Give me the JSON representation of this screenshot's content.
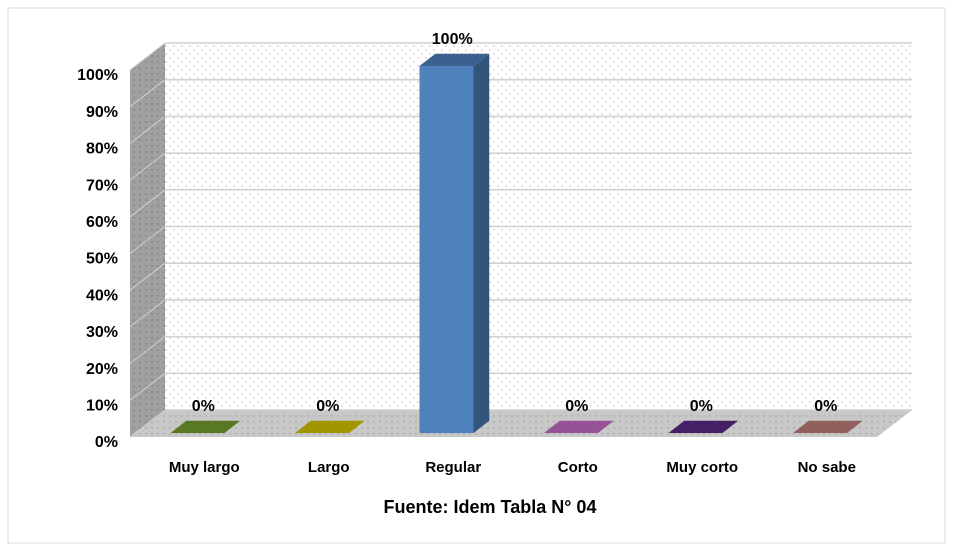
{
  "chart_data": {
    "type": "bar3d",
    "categories": [
      "Muy largo",
      "Largo",
      "Regular",
      "Corto",
      "Muy corto",
      "No sabe"
    ],
    "values": [
      0,
      0,
      100,
      0,
      0,
      0
    ],
    "value_labels": [
      "0%",
      "0%",
      "100%",
      "0%",
      "0%",
      "0%"
    ],
    "colors": [
      "#77a030",
      "#d4c800",
      "#4f81bd",
      "#c86ec8",
      "#5b2a86",
      "#c0807a"
    ],
    "ylim": [
      0,
      100
    ],
    "yticks": [
      {
        "value": 0,
        "label": "0%"
      },
      {
        "value": 10,
        "label": "10%"
      },
      {
        "value": 20,
        "label": "20%"
      },
      {
        "value": 30,
        "label": "30%"
      },
      {
        "value": 40,
        "label": "40%"
      },
      {
        "value": 50,
        "label": "50%"
      },
      {
        "value": 60,
        "label": "60%"
      },
      {
        "value": 70,
        "label": "70%"
      },
      {
        "value": 80,
        "label": "80%"
      },
      {
        "value": 90,
        "label": "90%"
      },
      {
        "value": 100,
        "label": "100%"
      }
    ],
    "grid": true,
    "x_label": "Fuente: Idem Tabla N° 04"
  }
}
